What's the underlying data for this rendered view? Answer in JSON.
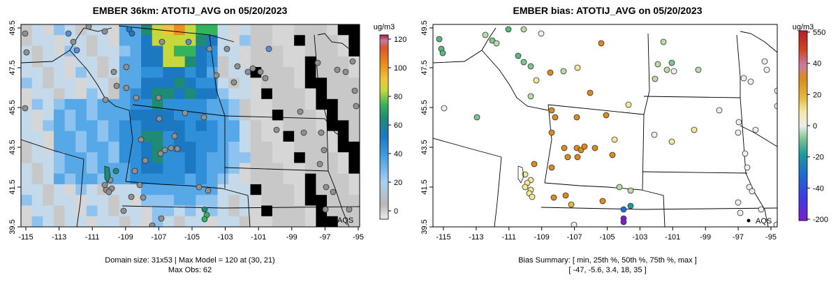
{
  "left": {
    "title": "EMBER 36km: ATOTIJ_AVG on 05/20/2023",
    "x_ticks": [
      "-115",
      "-113",
      "-111",
      "-109",
      "-107",
      "-105",
      "-103",
      "-101",
      "-99",
      "-97",
      "-95"
    ],
    "y_ticks": [
      "39.5",
      "41.5",
      "43.5",
      "45.5",
      "47.5",
      "49.5"
    ],
    "colorbar": {
      "unit": "ug/m3",
      "ticks": [
        "120",
        "100",
        "80",
        "60",
        "40",
        "20",
        "0"
      ]
    },
    "site_label": "AQS",
    "caption_line1": "Domain size: 31x53 | Max Model = 120 at (30, 21)",
    "caption_line2": "Max Obs: 62"
  },
  "right": {
    "title": "EMBER bias: ATOTIJ_AVG on 05/20/2023",
    "x_ticks": [
      "-115",
      "-113",
      "-111",
      "-109",
      "-107",
      "-105",
      "-103",
      "-101",
      "-99",
      "-97",
      "-95"
    ],
    "y_ticks": [
      "39.5",
      "41.5",
      "43.5",
      "45.5",
      "47.5",
      "49.5"
    ],
    "colorbar": {
      "unit": "ug/m3",
      "ticks": [
        "550",
        "40",
        "20",
        "0",
        "-20",
        "-40",
        "-200"
      ]
    },
    "site_label": "AQS",
    "caption_line1": "Bias Summary: [ min, 25th %, 50th %, 75th %, max ]",
    "caption_line2": "[ -47,   -5.6,   3.4,   18,   35 ]"
  },
  "colors": {
    "conc_scale": [
      "#e6e6e6",
      "#b0b0b0",
      "#8ec3ef",
      "#3f9be0",
      "#1d78c2",
      "#1f8b74",
      "#34b25c",
      "#c6d83b",
      "#f0c43a",
      "#eb8f1e",
      "#d8572a",
      "#c03a46",
      "#9b2335"
    ],
    "bias_scale": [
      "#7b1fd0",
      "#3f3ae0",
      "#1d6ed0",
      "#1b9b9b",
      "#56ba7a",
      "#b9dba4",
      "#eeeeee",
      "#f1e89a",
      "#e3b83a",
      "#db8a1e",
      "#d0451e",
      "#b0202c"
    ]
  }
}
